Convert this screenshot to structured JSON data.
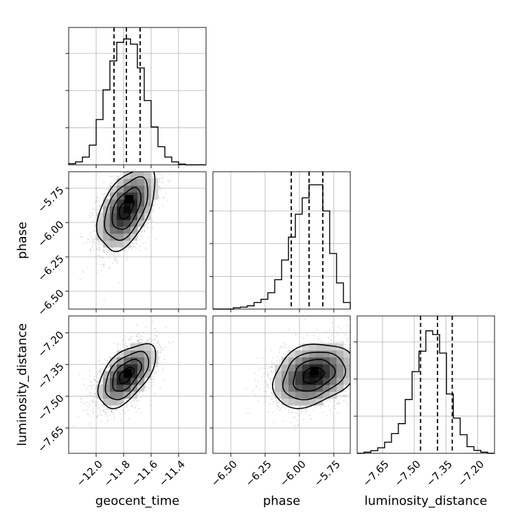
{
  "chart_data": {
    "type": "corner",
    "parameters": [
      "geocent_time",
      "phase",
      "luminosity_distance"
    ],
    "axis_labels": {
      "x": [
        "geocent_time",
        "phase",
        "luminosity_distance"
      ],
      "y": [
        "",
        "phase",
        "luminosity_distance"
      ]
    },
    "ranges": {
      "geocent_time": [
        -12.2,
        -11.2
      ],
      "phase": [
        -6.63,
        -5.63
      ],
      "luminosity_distance": [
        -7.77,
        -7.12
      ]
    },
    "ticks": {
      "geocent_time": [
        -12.0,
        -11.8,
        -11.6,
        -11.4
      ],
      "phase": [
        -6.5,
        -6.25,
        -6.0,
        -5.75
      ],
      "luminosity_distance": [
        -7.65,
        -7.5,
        -7.35,
        -7.2
      ]
    },
    "tick_labels": {
      "geocent_time": [
        "−12.0",
        "−11.8",
        "−11.6",
        "−11.4"
      ],
      "phase": [
        "−6.50",
        "−6.25",
        "−6.00",
        "−5.75"
      ],
      "luminosity_distance": [
        "−7.65",
        "−7.50",
        "−7.35",
        "−7.20"
      ]
    },
    "grid": true,
    "marginals": [
      {
        "parameter": "geocent_time",
        "bin_edges": [
          -12.2,
          -12.15,
          -12.1,
          -12.05,
          -12.0,
          -11.95,
          -11.9,
          -11.85,
          -11.8,
          -11.75,
          -11.7,
          -11.65,
          -11.6,
          -11.55,
          -11.5,
          -11.45,
          -11.4,
          -11.35,
          -11.3,
          -11.25,
          -11.2
        ],
        "counts": [
          0.3,
          0.8,
          2.1,
          5.3,
          12.2,
          20.2,
          28.0,
          33.0,
          33.9,
          32.5,
          26.1,
          17.3,
          10.2,
          4.9,
          2.1,
          0.8,
          0.2,
          0.0,
          0.0,
          0.0
        ],
        "quantiles": [
          -11.87,
          -11.78,
          -11.68
        ],
        "ymax": 37
      },
      {
        "parameter": "phase",
        "bin_edges": [
          -6.63,
          -6.58,
          -6.53,
          -6.48,
          -6.43,
          -6.38,
          -6.33,
          -6.28,
          -6.23,
          -6.18,
          -6.13,
          -6.08,
          -6.03,
          -5.98,
          -5.93,
          -5.88,
          -5.83,
          -5.78,
          -5.73,
          -5.68,
          -5.63
        ],
        "counts": [
          0.0,
          0.0,
          0.0,
          0.4,
          0.6,
          1.0,
          2.0,
          3.0,
          5.0,
          9.0,
          15.0,
          22.0,
          29.0,
          34.0,
          38.0,
          38.0,
          30.0,
          17.0,
          8.0,
          2.0
        ],
        "quantiles": [
          -6.06,
          -5.93,
          -5.83
        ],
        "ymax": 42
      },
      {
        "parameter": "luminosity_distance",
        "bin_edges": [
          -7.77,
          -7.7375,
          -7.705,
          -7.6725,
          -7.64,
          -7.6075,
          -7.575,
          -7.5425,
          -7.51,
          -7.4775,
          -7.445,
          -7.4125,
          -7.38,
          -7.3475,
          -7.315,
          -7.2825,
          -7.25,
          -7.2175,
          -7.185,
          -7.1525,
          -7.12
        ],
        "counts": [
          0.0,
          0.3,
          0.7,
          1.5,
          3.0,
          5.3,
          8.0,
          14.5,
          22.0,
          27.5,
          33.0,
          32.0,
          27.0,
          16.0,
          9.5,
          5.0,
          1.8,
          0.8,
          0.3,
          0.0
        ],
        "quantiles": [
          -7.47,
          -7.39,
          -7.32
        ],
        "ymax": 37
      }
    ],
    "scatter_panels": [
      {
        "x": "geocent_time",
        "y": "phase",
        "mean": [
          -11.78,
          -5.9
        ],
        "sigma": [
          0.105,
          0.15
        ],
        "correlation": 0.5,
        "peak": [
          -11.76,
          -5.83
        ]
      },
      {
        "x": "geocent_time",
        "y": "luminosity_distance",
        "mean": [
          -11.78,
          -7.4
        ],
        "sigma": [
          0.105,
          0.075
        ],
        "correlation": 0.55,
        "peak": [
          -11.77,
          -7.39
        ]
      },
      {
        "x": "phase",
        "y": "luminosity_distance",
        "mean": [
          -5.9,
          -7.4
        ],
        "sigma": [
          0.15,
          0.075
        ],
        "correlation": 0.28,
        "peak": [
          -5.89,
          -7.38
        ]
      }
    ],
    "contour_levels_sigma": [
      0.5,
      1.0,
      1.5,
      2.0
    ]
  }
}
